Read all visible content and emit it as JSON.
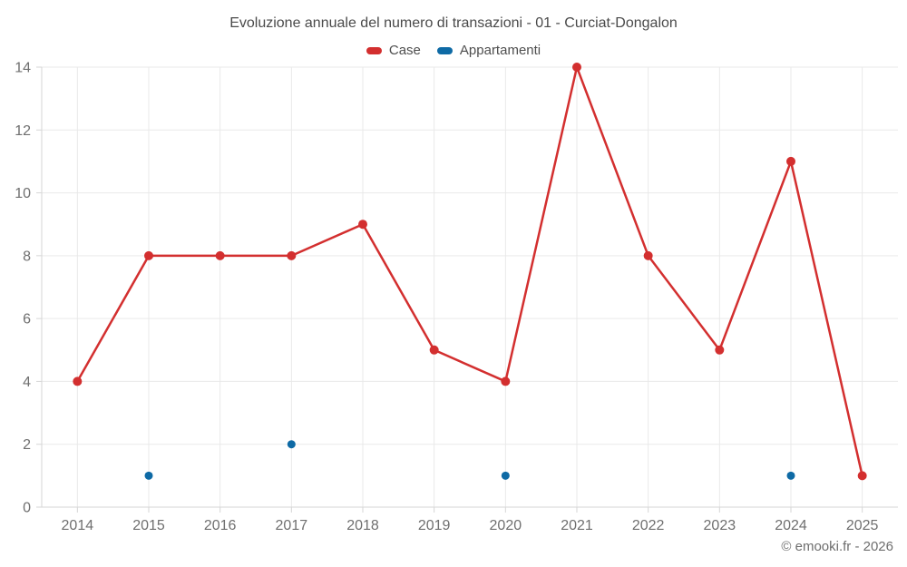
{
  "header": {
    "title": "Evoluzione annuale del numero di transazioni - 01 - Curciat-Dongalon"
  },
  "footer": {
    "credit": "© emooki.fr - 2026"
  },
  "chart_data": {
    "type": "line",
    "title": "Evoluzione annuale del numero di transazioni - 01 - Curciat-Dongalon",
    "categories": [
      "2014",
      "2015",
      "2016",
      "2017",
      "2018",
      "2019",
      "2020",
      "2021",
      "2022",
      "2023",
      "2024",
      "2025"
    ],
    "series": [
      {
        "name": "Case",
        "color": "#d32f2f",
        "point_radius": 5,
        "line_width": 2.5,
        "values": [
          4,
          8,
          8,
          8,
          9,
          5,
          4,
          14,
          8,
          5,
          11,
          1
        ]
      },
      {
        "name": "Appartamenti",
        "color": "#0e6aa5",
        "point_radius": 4.5,
        "line_width": 2.5,
        "values": [
          null,
          1,
          null,
          2,
          null,
          null,
          1,
          null,
          null,
          null,
          1,
          null
        ]
      }
    ],
    "xlabel": "",
    "ylabel": "",
    "ylim": [
      0,
      14
    ],
    "ytick_step": 2,
    "grid": true,
    "legend_position": "top",
    "colors": {
      "grid": "#e9e9e9",
      "axis": "#d6d6d6",
      "tick_label": "#6f6f6f"
    }
  }
}
